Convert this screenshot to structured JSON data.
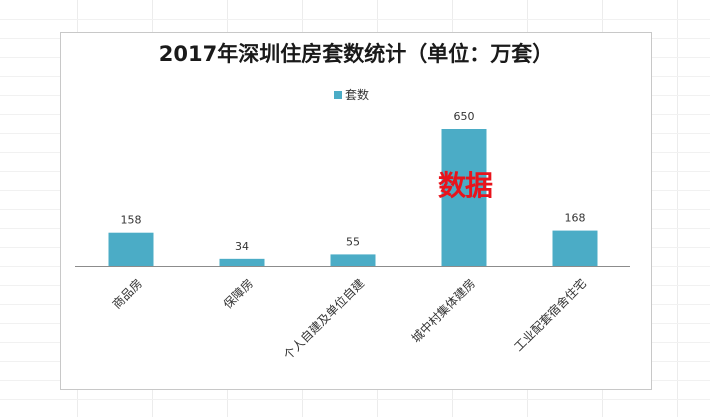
{
  "chart_data": {
    "type": "bar",
    "title": "2017年深圳住房套数统计（单位：万套）",
    "categories": [
      "商品房",
      "保障房",
      "个人自建及单位自建",
      "城中村集体建房",
      "工业配套宿舍住宅"
    ],
    "series": [
      {
        "name": "套数",
        "values": [
          158,
          34,
          55,
          650,
          168
        ]
      }
    ],
    "xlabel": "",
    "ylabel": "",
    "ylim": [
      0,
      720
    ],
    "grid": false,
    "legend": "top-center",
    "bar_color": "#4bacc6"
  },
  "watermark": {
    "text": "数据",
    "color": "#e8141c"
  }
}
